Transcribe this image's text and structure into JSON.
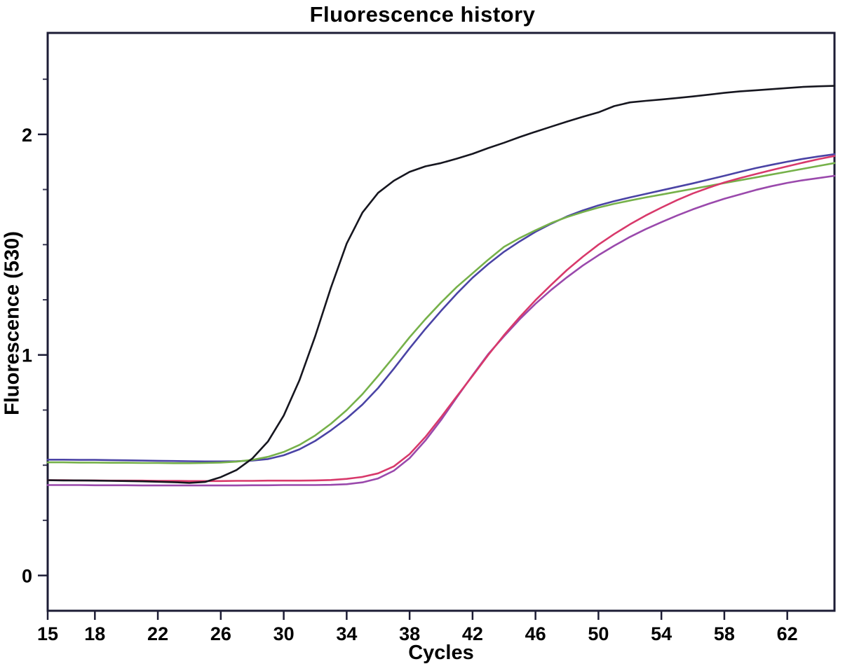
{
  "page": {
    "background_color": "#ffffff",
    "axis_color": "#1c1c35",
    "minor_tick_color": "#3c3c55"
  },
  "chart_data": {
    "type": "line",
    "title": "Fluorescence history",
    "xlabel": "Cycles",
    "ylabel": "Fluorescence (530)",
    "xlim": [
      15,
      65
    ],
    "ylim": [
      -0.16,
      2.46
    ],
    "x_ticks": [
      15,
      18,
      22,
      26,
      30,
      34,
      38,
      42,
      46,
      50,
      54,
      58,
      62
    ],
    "y_major_ticks": [
      0,
      1,
      2
    ],
    "y_minor_ticks": [
      0.25,
      0.5,
      0.75,
      1.25,
      1.5,
      1.75,
      2.25
    ],
    "grid": false,
    "legend": "none",
    "series": [
      {
        "name": "curve-blue",
        "color": "#4a43a5",
        "points": [
          [
            15,
            0.525
          ],
          [
            16,
            0.525
          ],
          [
            17,
            0.524
          ],
          [
            18,
            0.524
          ],
          [
            19,
            0.523
          ],
          [
            20,
            0.522
          ],
          [
            21,
            0.521
          ],
          [
            22,
            0.52
          ],
          [
            23,
            0.519
          ],
          [
            24,
            0.518
          ],
          [
            25,
            0.517
          ],
          [
            26,
            0.517
          ],
          [
            27,
            0.518
          ],
          [
            28,
            0.521
          ],
          [
            29,
            0.528
          ],
          [
            30,
            0.545
          ],
          [
            31,
            0.572
          ],
          [
            32,
            0.61
          ],
          [
            33,
            0.658
          ],
          [
            34,
            0.712
          ],
          [
            35,
            0.775
          ],
          [
            36,
            0.85
          ],
          [
            37,
            0.938
          ],
          [
            38,
            1.03
          ],
          [
            39,
            1.118
          ],
          [
            40,
            1.2
          ],
          [
            41,
            1.278
          ],
          [
            42,
            1.35
          ],
          [
            43,
            1.412
          ],
          [
            44,
            1.468
          ],
          [
            45,
            1.515
          ],
          [
            46,
            1.558
          ],
          [
            47,
            1.595
          ],
          [
            48,
            1.628
          ],
          [
            49,
            1.655
          ],
          [
            50,
            1.678
          ],
          [
            51,
            1.697
          ],
          [
            52,
            1.714
          ],
          [
            53,
            1.73
          ],
          [
            54,
            1.746
          ],
          [
            55,
            1.762
          ],
          [
            56,
            1.778
          ],
          [
            57,
            1.795
          ],
          [
            58,
            1.812
          ],
          [
            59,
            1.83
          ],
          [
            60,
            1.847
          ],
          [
            61,
            1.862
          ],
          [
            62,
            1.876
          ],
          [
            63,
            1.889
          ],
          [
            64,
            1.9
          ],
          [
            65,
            1.91
          ]
        ]
      },
      {
        "name": "curve-green",
        "color": "#76b14a",
        "points": [
          [
            15,
            0.513
          ],
          [
            16,
            0.513
          ],
          [
            17,
            0.512
          ],
          [
            18,
            0.512
          ],
          [
            19,
            0.511
          ],
          [
            20,
            0.511
          ],
          [
            21,
            0.51
          ],
          [
            22,
            0.51
          ],
          [
            23,
            0.509
          ],
          [
            24,
            0.509
          ],
          [
            25,
            0.51
          ],
          [
            26,
            0.512
          ],
          [
            27,
            0.516
          ],
          [
            28,
            0.524
          ],
          [
            29,
            0.538
          ],
          [
            30,
            0.56
          ],
          [
            31,
            0.592
          ],
          [
            32,
            0.635
          ],
          [
            33,
            0.688
          ],
          [
            34,
            0.75
          ],
          [
            35,
            0.822
          ],
          [
            36,
            0.905
          ],
          [
            37,
            0.992
          ],
          [
            38,
            1.08
          ],
          [
            39,
            1.162
          ],
          [
            40,
            1.238
          ],
          [
            41,
            1.308
          ],
          [
            42,
            1.37
          ],
          [
            43,
            1.432
          ],
          [
            44,
            1.49
          ],
          [
            45,
            1.53
          ],
          [
            46,
            1.565
          ],
          [
            47,
            1.598
          ],
          [
            48,
            1.625
          ],
          [
            49,
            1.648
          ],
          [
            50,
            1.668
          ],
          [
            51,
            1.685
          ],
          [
            52,
            1.7
          ],
          [
            53,
            1.714
          ],
          [
            54,
            1.727
          ],
          [
            55,
            1.74
          ],
          [
            56,
            1.753
          ],
          [
            57,
            1.766
          ],
          [
            58,
            1.779
          ],
          [
            59,
            1.792
          ],
          [
            60,
            1.805
          ],
          [
            61,
            1.818
          ],
          [
            62,
            1.831
          ],
          [
            63,
            1.844
          ],
          [
            64,
            1.857
          ],
          [
            65,
            1.87
          ]
        ]
      },
      {
        "name": "curve-purple",
        "color": "#9a49ac",
        "points": [
          [
            15,
            0.41
          ],
          [
            16,
            0.41
          ],
          [
            17,
            0.41
          ],
          [
            18,
            0.409
          ],
          [
            19,
            0.409
          ],
          [
            20,
            0.409
          ],
          [
            21,
            0.408
          ],
          [
            22,
            0.408
          ],
          [
            23,
            0.408
          ],
          [
            24,
            0.408
          ],
          [
            25,
            0.408
          ],
          [
            26,
            0.408
          ],
          [
            27,
            0.408
          ],
          [
            28,
            0.409
          ],
          [
            29,
            0.409
          ],
          [
            30,
            0.41
          ],
          [
            31,
            0.41
          ],
          [
            32,
            0.41
          ],
          [
            33,
            0.411
          ],
          [
            34,
            0.414
          ],
          [
            35,
            0.422
          ],
          [
            36,
            0.44
          ],
          [
            37,
            0.475
          ],
          [
            38,
            0.532
          ],
          [
            39,
            0.612
          ],
          [
            40,
            0.705
          ],
          [
            41,
            0.808
          ],
          [
            42,
            0.908
          ],
          [
            43,
            1.004
          ],
          [
            44,
            1.085
          ],
          [
            45,
            1.162
          ],
          [
            46,
            1.232
          ],
          [
            47,
            1.295
          ],
          [
            48,
            1.352
          ],
          [
            49,
            1.405
          ],
          [
            50,
            1.452
          ],
          [
            51,
            1.495
          ],
          [
            52,
            1.535
          ],
          [
            53,
            1.57
          ],
          [
            54,
            1.602
          ],
          [
            55,
            1.632
          ],
          [
            56,
            1.66
          ],
          [
            57,
            1.685
          ],
          [
            58,
            1.708
          ],
          [
            59,
            1.728
          ],
          [
            60,
            1.748
          ],
          [
            61,
            1.765
          ],
          [
            62,
            1.78
          ],
          [
            63,
            1.792
          ],
          [
            64,
            1.802
          ],
          [
            65,
            1.812
          ]
        ]
      },
      {
        "name": "curve-red",
        "color": "#d8396b",
        "points": [
          [
            15,
            0.432
          ],
          [
            16,
            0.432
          ],
          [
            17,
            0.431
          ],
          [
            18,
            0.431
          ],
          [
            19,
            0.43
          ],
          [
            20,
            0.43
          ],
          [
            21,
            0.43
          ],
          [
            22,
            0.429
          ],
          [
            23,
            0.429
          ],
          [
            24,
            0.428
          ],
          [
            25,
            0.428
          ],
          [
            26,
            0.428
          ],
          [
            27,
            0.429
          ],
          [
            28,
            0.429
          ],
          [
            29,
            0.43
          ],
          [
            30,
            0.43
          ],
          [
            31,
            0.43
          ],
          [
            32,
            0.431
          ],
          [
            33,
            0.433
          ],
          [
            34,
            0.438
          ],
          [
            35,
            0.447
          ],
          [
            36,
            0.463
          ],
          [
            37,
            0.495
          ],
          [
            38,
            0.55
          ],
          [
            39,
            0.628
          ],
          [
            40,
            0.718
          ],
          [
            41,
            0.812
          ],
          [
            42,
            0.905
          ],
          [
            43,
            1.0
          ],
          [
            44,
            1.09
          ],
          [
            45,
            1.172
          ],
          [
            46,
            1.248
          ],
          [
            47,
            1.318
          ],
          [
            48,
            1.385
          ],
          [
            49,
            1.445
          ],
          [
            50,
            1.5
          ],
          [
            51,
            1.548
          ],
          [
            52,
            1.592
          ],
          [
            53,
            1.632
          ],
          [
            54,
            1.668
          ],
          [
            55,
            1.702
          ],
          [
            56,
            1.732
          ],
          [
            57,
            1.758
          ],
          [
            58,
            1.782
          ],
          [
            59,
            1.802
          ],
          [
            60,
            1.82
          ],
          [
            61,
            1.838
          ],
          [
            62,
            1.855
          ],
          [
            63,
            1.872
          ],
          [
            64,
            1.888
          ],
          [
            65,
            1.902
          ]
        ]
      },
      {
        "name": "curve-black",
        "color": "#16161f",
        "points": [
          [
            15,
            0.432
          ],
          [
            16,
            0.431
          ],
          [
            17,
            0.431
          ],
          [
            18,
            0.43
          ],
          [
            19,
            0.429
          ],
          [
            20,
            0.428
          ],
          [
            21,
            0.427
          ],
          [
            22,
            0.425
          ],
          [
            23,
            0.423
          ],
          [
            24,
            0.42
          ],
          [
            25,
            0.424
          ],
          [
            26,
            0.446
          ],
          [
            27,
            0.478
          ],
          [
            28,
            0.53
          ],
          [
            29,
            0.608
          ],
          [
            30,
            0.725
          ],
          [
            31,
            0.885
          ],
          [
            32,
            1.085
          ],
          [
            33,
            1.305
          ],
          [
            34,
            1.505
          ],
          [
            35,
            1.645
          ],
          [
            36,
            1.735
          ],
          [
            37,
            1.79
          ],
          [
            38,
            1.83
          ],
          [
            39,
            1.855
          ],
          [
            40,
            1.87
          ],
          [
            41,
            1.89
          ],
          [
            42,
            1.912
          ],
          [
            43,
            1.938
          ],
          [
            44,
            1.962
          ],
          [
            45,
            1.988
          ],
          [
            46,
            2.012
          ],
          [
            47,
            2.035
          ],
          [
            48,
            2.058
          ],
          [
            49,
            2.08
          ],
          [
            50,
            2.1
          ],
          [
            51,
            2.128
          ],
          [
            52,
            2.145
          ],
          [
            53,
            2.152
          ],
          [
            54,
            2.158
          ],
          [
            55,
            2.165
          ],
          [
            56,
            2.172
          ],
          [
            57,
            2.18
          ],
          [
            58,
            2.188
          ],
          [
            59,
            2.195
          ],
          [
            60,
            2.2
          ],
          [
            61,
            2.205
          ],
          [
            62,
            2.21
          ],
          [
            63,
            2.215
          ],
          [
            64,
            2.218
          ],
          [
            65,
            2.22
          ]
        ]
      }
    ]
  }
}
